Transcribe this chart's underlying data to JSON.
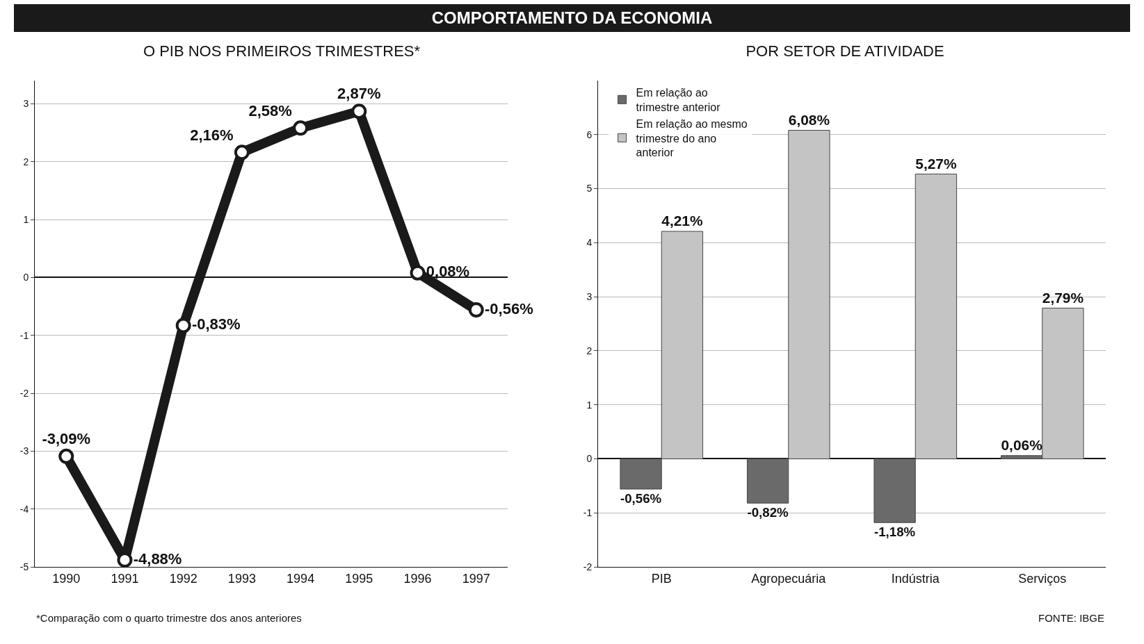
{
  "chart_data": [
    {
      "type": "line",
      "title": "COMPORTAMENTO DA ECONOMIA",
      "subtitle": "O PIB NOS PRIMEIROS TRIMESTRES*",
      "categories": [
        "1990",
        "1991",
        "1992",
        "1993",
        "1994",
        "1995",
        "1996",
        "1997"
      ],
      "values": [
        -3.09,
        -4.88,
        -0.83,
        2.16,
        2.58,
        2.87,
        0.08,
        -0.56
      ],
      "value_labels": [
        "-3,09%",
        "-4,88%",
        "-0,83%",
        "2,16%",
        "2,58%",
        "2,87%",
        "0,08%",
        "-0,56%"
      ],
      "color": "#1a1a1a",
      "marker": "circle",
      "line_style": "solid",
      "ylim": [
        -5,
        3.4
      ],
      "yticks": [
        -5,
        -4,
        -3,
        -2,
        -1,
        0,
        1,
        2,
        3
      ],
      "grid": "y",
      "annotations": [
        "*Comparação com o quarto trimestre dos anos anteriores"
      ]
    },
    {
      "type": "bar",
      "title": "POR SETOR DE ATIVIDADE",
      "categories": [
        "PIB",
        "Agropecuária",
        "Indústria",
        "Serviços"
      ],
      "series": [
        {
          "name": "Em relação ao trimestre anterior",
          "color": "#6a6a6a",
          "values": [
            -0.56,
            -0.82,
            -1.18,
            0.06
          ],
          "value_labels": [
            "-0,56%",
            "-0,82%",
            "-1,18%",
            "0,06%"
          ]
        },
        {
          "name": "Em relação ao mesmo trimestre do ano anterior",
          "color": "#c4c4c4",
          "values": [
            4.21,
            6.08,
            5.27,
            2.79
          ],
          "value_labels": [
            "4,21%",
            "6,08%",
            "5,27%",
            "2,79%"
          ]
        }
      ],
      "ylim": [
        -2,
        7
      ],
      "yticks": [
        -2,
        -1,
        0,
        1,
        2,
        3,
        4,
        5,
        6
      ],
      "grid": "y",
      "legend": "top left",
      "annotations": [
        "FONTE: IBGE"
      ]
    }
  ]
}
